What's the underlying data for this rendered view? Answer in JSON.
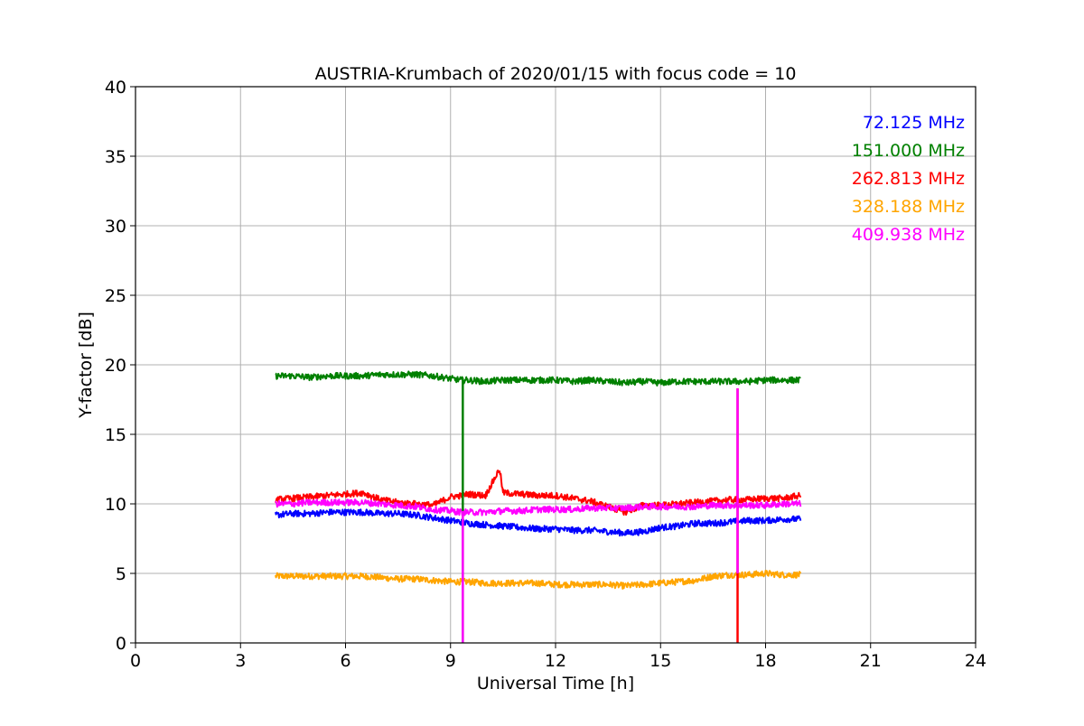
{
  "chart_data": {
    "type": "line",
    "title": "AUSTRIA-Krumbach of 2020/01/15 with focus code = 10",
    "xlabel": "Universal Time [h]",
    "ylabel": "Y-factor [dB]",
    "xlim": [
      0,
      24
    ],
    "ylim": [
      0,
      40
    ],
    "xticks": [
      0,
      3,
      6,
      9,
      12,
      15,
      18,
      21,
      24
    ],
    "yticks": [
      0,
      5,
      10,
      15,
      20,
      25,
      30,
      35,
      40
    ],
    "grid": true,
    "legend_position": "top-right",
    "series": [
      {
        "name": "72.125 MHz",
        "color": "#0000ff",
        "x": [
          4.0,
          4.5,
          5.0,
          5.5,
          6.0,
          6.5,
          7.0,
          7.5,
          8.0,
          8.5,
          9.0,
          9.3,
          9.5,
          10.0,
          10.5,
          11.0,
          11.5,
          12.0,
          12.5,
          13.0,
          13.5,
          14.0,
          14.5,
          15.0,
          15.5,
          16.0,
          16.5,
          17.0,
          17.5,
          18.0,
          18.5,
          19.0
        ],
        "values": [
          9.2,
          9.3,
          9.3,
          9.4,
          9.4,
          9.4,
          9.3,
          9.3,
          9.2,
          9.0,
          8.8,
          8.7,
          8.6,
          8.5,
          8.4,
          8.3,
          8.2,
          8.2,
          8.1,
          8.1,
          8.0,
          7.9,
          8.0,
          8.3,
          8.4,
          8.6,
          8.6,
          8.7,
          8.8,
          8.8,
          8.9,
          8.9
        ]
      },
      {
        "name": "151.000 MHz",
        "color": "#008000",
        "x": [
          4.0,
          4.5,
          5.0,
          5.5,
          6.0,
          6.5,
          7.0,
          7.5,
          8.0,
          8.5,
          9.0,
          9.3,
          9.5,
          10.0,
          10.5,
          11.0,
          11.5,
          12.0,
          12.5,
          13.0,
          13.5,
          14.0,
          14.5,
          15.0,
          15.5,
          16.0,
          16.5,
          17.0,
          17.5,
          18.0,
          18.5,
          19.0
        ],
        "values": [
          19.2,
          19.2,
          19.1,
          19.2,
          19.2,
          19.2,
          19.3,
          19.3,
          19.3,
          19.2,
          19.0,
          18.9,
          18.9,
          18.8,
          18.9,
          18.9,
          18.9,
          18.9,
          18.8,
          18.9,
          18.8,
          18.7,
          18.8,
          18.7,
          18.8,
          18.8,
          18.8,
          18.8,
          18.8,
          18.9,
          18.9,
          18.9
        ]
      },
      {
        "name": "262.813 MHz",
        "color": "#ff0000",
        "x": [
          4.0,
          4.5,
          5.0,
          5.5,
          6.0,
          6.5,
          7.0,
          7.5,
          8.0,
          8.5,
          9.0,
          9.3,
          9.5,
          10.0,
          10.4,
          10.5,
          11.0,
          11.5,
          12.0,
          12.5,
          13.0,
          13.5,
          14.0,
          14.5,
          15.0,
          15.5,
          16.0,
          16.5,
          17.0,
          17.5,
          18.0,
          18.5,
          19.0
        ],
        "values": [
          10.3,
          10.4,
          10.5,
          10.6,
          10.7,
          10.8,
          10.3,
          10.1,
          10.0,
          9.9,
          10.5,
          10.6,
          10.7,
          10.6,
          12.5,
          10.8,
          10.7,
          10.6,
          10.6,
          10.4,
          10.2,
          9.8,
          9.4,
          9.9,
          9.9,
          10.0,
          10.1,
          10.2,
          10.3,
          10.3,
          10.4,
          10.4,
          10.6
        ]
      },
      {
        "name": "328.188 MHz",
        "color": "#ffa500",
        "x": [
          4.0,
          4.5,
          5.0,
          5.5,
          6.0,
          6.5,
          7.0,
          7.5,
          8.0,
          8.5,
          9.0,
          9.3,
          9.5,
          10.0,
          10.5,
          11.0,
          11.5,
          12.0,
          12.5,
          13.0,
          13.5,
          14.0,
          14.5,
          15.0,
          15.5,
          16.0,
          16.5,
          17.0,
          17.5,
          18.0,
          18.5,
          19.0
        ],
        "values": [
          4.8,
          4.8,
          4.8,
          4.8,
          4.8,
          4.8,
          4.7,
          4.6,
          4.6,
          4.5,
          4.4,
          4.4,
          4.4,
          4.3,
          4.3,
          4.3,
          4.3,
          4.2,
          4.2,
          4.2,
          4.2,
          4.1,
          4.2,
          4.3,
          4.4,
          4.5,
          4.8,
          4.9,
          4.9,
          5.0,
          4.9,
          4.9
        ]
      },
      {
        "name": "409.938 MHz",
        "color": "#ff00ff",
        "x": [
          4.0,
          4.5,
          5.0,
          5.5,
          6.0,
          6.5,
          7.0,
          7.5,
          8.0,
          8.5,
          9.0,
          9.3,
          9.5,
          10.0,
          10.5,
          11.0,
          11.5,
          12.0,
          12.5,
          13.0,
          13.5,
          14.0,
          14.5,
          15.0,
          15.5,
          16.0,
          16.5,
          17.0,
          17.5,
          18.0,
          18.5,
          19.0
        ],
        "values": [
          10.0,
          10.0,
          10.1,
          10.1,
          10.1,
          10.1,
          10.0,
          9.9,
          9.8,
          9.6,
          9.5,
          9.4,
          9.4,
          9.4,
          9.5,
          9.5,
          9.6,
          9.6,
          9.6,
          9.7,
          9.7,
          9.7,
          9.8,
          9.8,
          9.8,
          9.8,
          9.9,
          9.9,
          9.9,
          9.9,
          10.0,
          10.0
        ]
      }
    ],
    "spikes": [
      {
        "x": 9.35,
        "from": 0,
        "to": 19.0,
        "color": "#008000"
      },
      {
        "x": 9.35,
        "from": 0,
        "to": 9.5,
        "color": "#ff00ff"
      },
      {
        "x": 17.2,
        "from": 0,
        "to": 18.3,
        "color": "#ff0000"
      },
      {
        "x": 17.2,
        "from": 5.0,
        "to": 18.3,
        "color": "#ff00ff"
      }
    ]
  }
}
